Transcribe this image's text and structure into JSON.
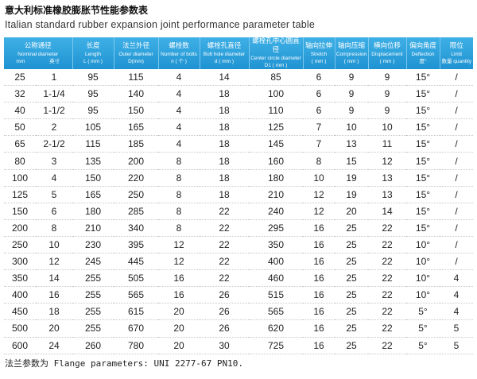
{
  "header": {
    "title": "意大利标准橡胶膨胀节性能参数表",
    "subtitle": "Italian standard rubber expansion joint performance parameter table"
  },
  "table": {
    "columns": [
      {
        "zh": "公称通径",
        "en": "Nominal diameter",
        "units": [
          "mm",
          "英寸"
        ]
      },
      {
        "zh": "长度",
        "en": "Length",
        "unit": "L ( mm )"
      },
      {
        "zh": "法兰外径",
        "en": "Outer diameter",
        "unit": "D(mm)"
      },
      {
        "zh": "螺栓数",
        "en": "Number of bolts",
        "unit": "n ( 个 )"
      },
      {
        "zh": "螺栓孔直径",
        "en": "Bolt hole diameter",
        "unit": "d ( mm )"
      },
      {
        "zh": "螺栓孔中心圆直径",
        "en": "Center circle diameter",
        "unit": "D1 ( mm )"
      },
      {
        "zh": "轴向拉伸",
        "en": "Stretch",
        "unit": "( mm )"
      },
      {
        "zh": "轴向压缩",
        "en": "Compression",
        "unit": "( mm )"
      },
      {
        "zh": "横向位移",
        "en": "Displacement",
        "unit": "( mm )"
      },
      {
        "zh": "偏向角度",
        "en": "Deflection",
        "unit": "度°"
      },
      {
        "zh": "限位",
        "en": "Limit",
        "unit": "数量 quantity"
      }
    ],
    "rows": [
      [
        25,
        "1",
        95,
        115,
        4,
        14,
        85,
        6,
        9,
        9,
        "15°",
        "/"
      ],
      [
        32,
        "1-1/4",
        95,
        140,
        4,
        18,
        100,
        6,
        9,
        9,
        "15°",
        "/"
      ],
      [
        40,
        "1-1/2",
        95,
        150,
        4,
        18,
        110,
        6,
        9,
        9,
        "15°",
        "/"
      ],
      [
        50,
        "2",
        105,
        165,
        4,
        18,
        125,
        7,
        10,
        10,
        "15°",
        "/"
      ],
      [
        65,
        "2-1/2",
        115,
        185,
        4,
        18,
        145,
        7,
        13,
        11,
        "15°",
        "/"
      ],
      [
        80,
        "3",
        135,
        200,
        8,
        18,
        160,
        8,
        15,
        12,
        "15°",
        "/"
      ],
      [
        100,
        "4",
        150,
        220,
        8,
        18,
        180,
        10,
        19,
        13,
        "15°",
        "/"
      ],
      [
        125,
        "5",
        165,
        250,
        8,
        18,
        210,
        12,
        19,
        13,
        "15°",
        "/"
      ],
      [
        150,
        "6",
        180,
        285,
        8,
        22,
        240,
        12,
        20,
        14,
        "15°",
        "/"
      ],
      [
        200,
        "8",
        210,
        340,
        8,
        22,
        295,
        16,
        25,
        22,
        "15°",
        "/"
      ],
      [
        250,
        "10",
        230,
        395,
        12,
        22,
        350,
        16,
        25,
        22,
        "10°",
        "/"
      ],
      [
        300,
        "12",
        245,
        445,
        12,
        22,
        400,
        16,
        25,
        22,
        "10°",
        "/"
      ],
      [
        350,
        "14",
        255,
        505,
        16,
        22,
        460,
        16,
        25,
        22,
        "10°",
        "4"
      ],
      [
        400,
        "16",
        255,
        565,
        16,
        26,
        515,
        16,
        25,
        22,
        "10°",
        "4"
      ],
      [
        450,
        "18",
        255,
        615,
        20,
        26,
        565,
        16,
        25,
        22,
        "5°",
        "4"
      ],
      [
        500,
        "20",
        255,
        670,
        20,
        26,
        620,
        16,
        25,
        22,
        "5°",
        "5"
      ],
      [
        600,
        "24",
        260,
        780,
        20,
        30,
        725,
        16,
        25,
        22,
        "5°",
        "5"
      ]
    ]
  },
  "footer": "法兰参数为 Flange parameters: UNI 2277-67 PN10."
}
